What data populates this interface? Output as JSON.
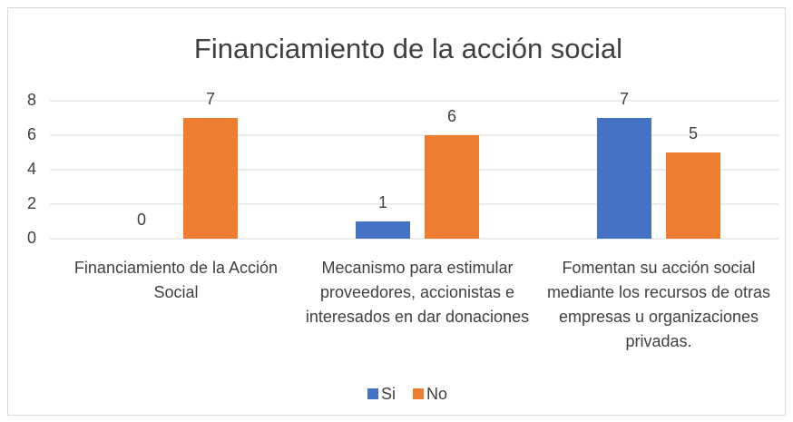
{
  "chart_data": {
    "type": "bar",
    "title": "Financiamiento de la acción social",
    "categories": [
      "Financiamiento de la Acción Social",
      "Mecanismo para estimular proveedores, accionistas e interesados en dar donaciones",
      "Fomentan su acción social mediante los recursos de otras empresas u organizaciones privadas."
    ],
    "series": [
      {
        "name": "Si",
        "color": "#4472c4",
        "values": [
          0,
          1,
          7
        ]
      },
      {
        "name": "No",
        "color": "#ed7d31",
        "values": [
          7,
          6,
          5
        ]
      }
    ],
    "ylim": [
      0,
      8
    ],
    "yticks": [
      0,
      2,
      4,
      6,
      8
    ],
    "grid": true,
    "legend": "bottom"
  }
}
